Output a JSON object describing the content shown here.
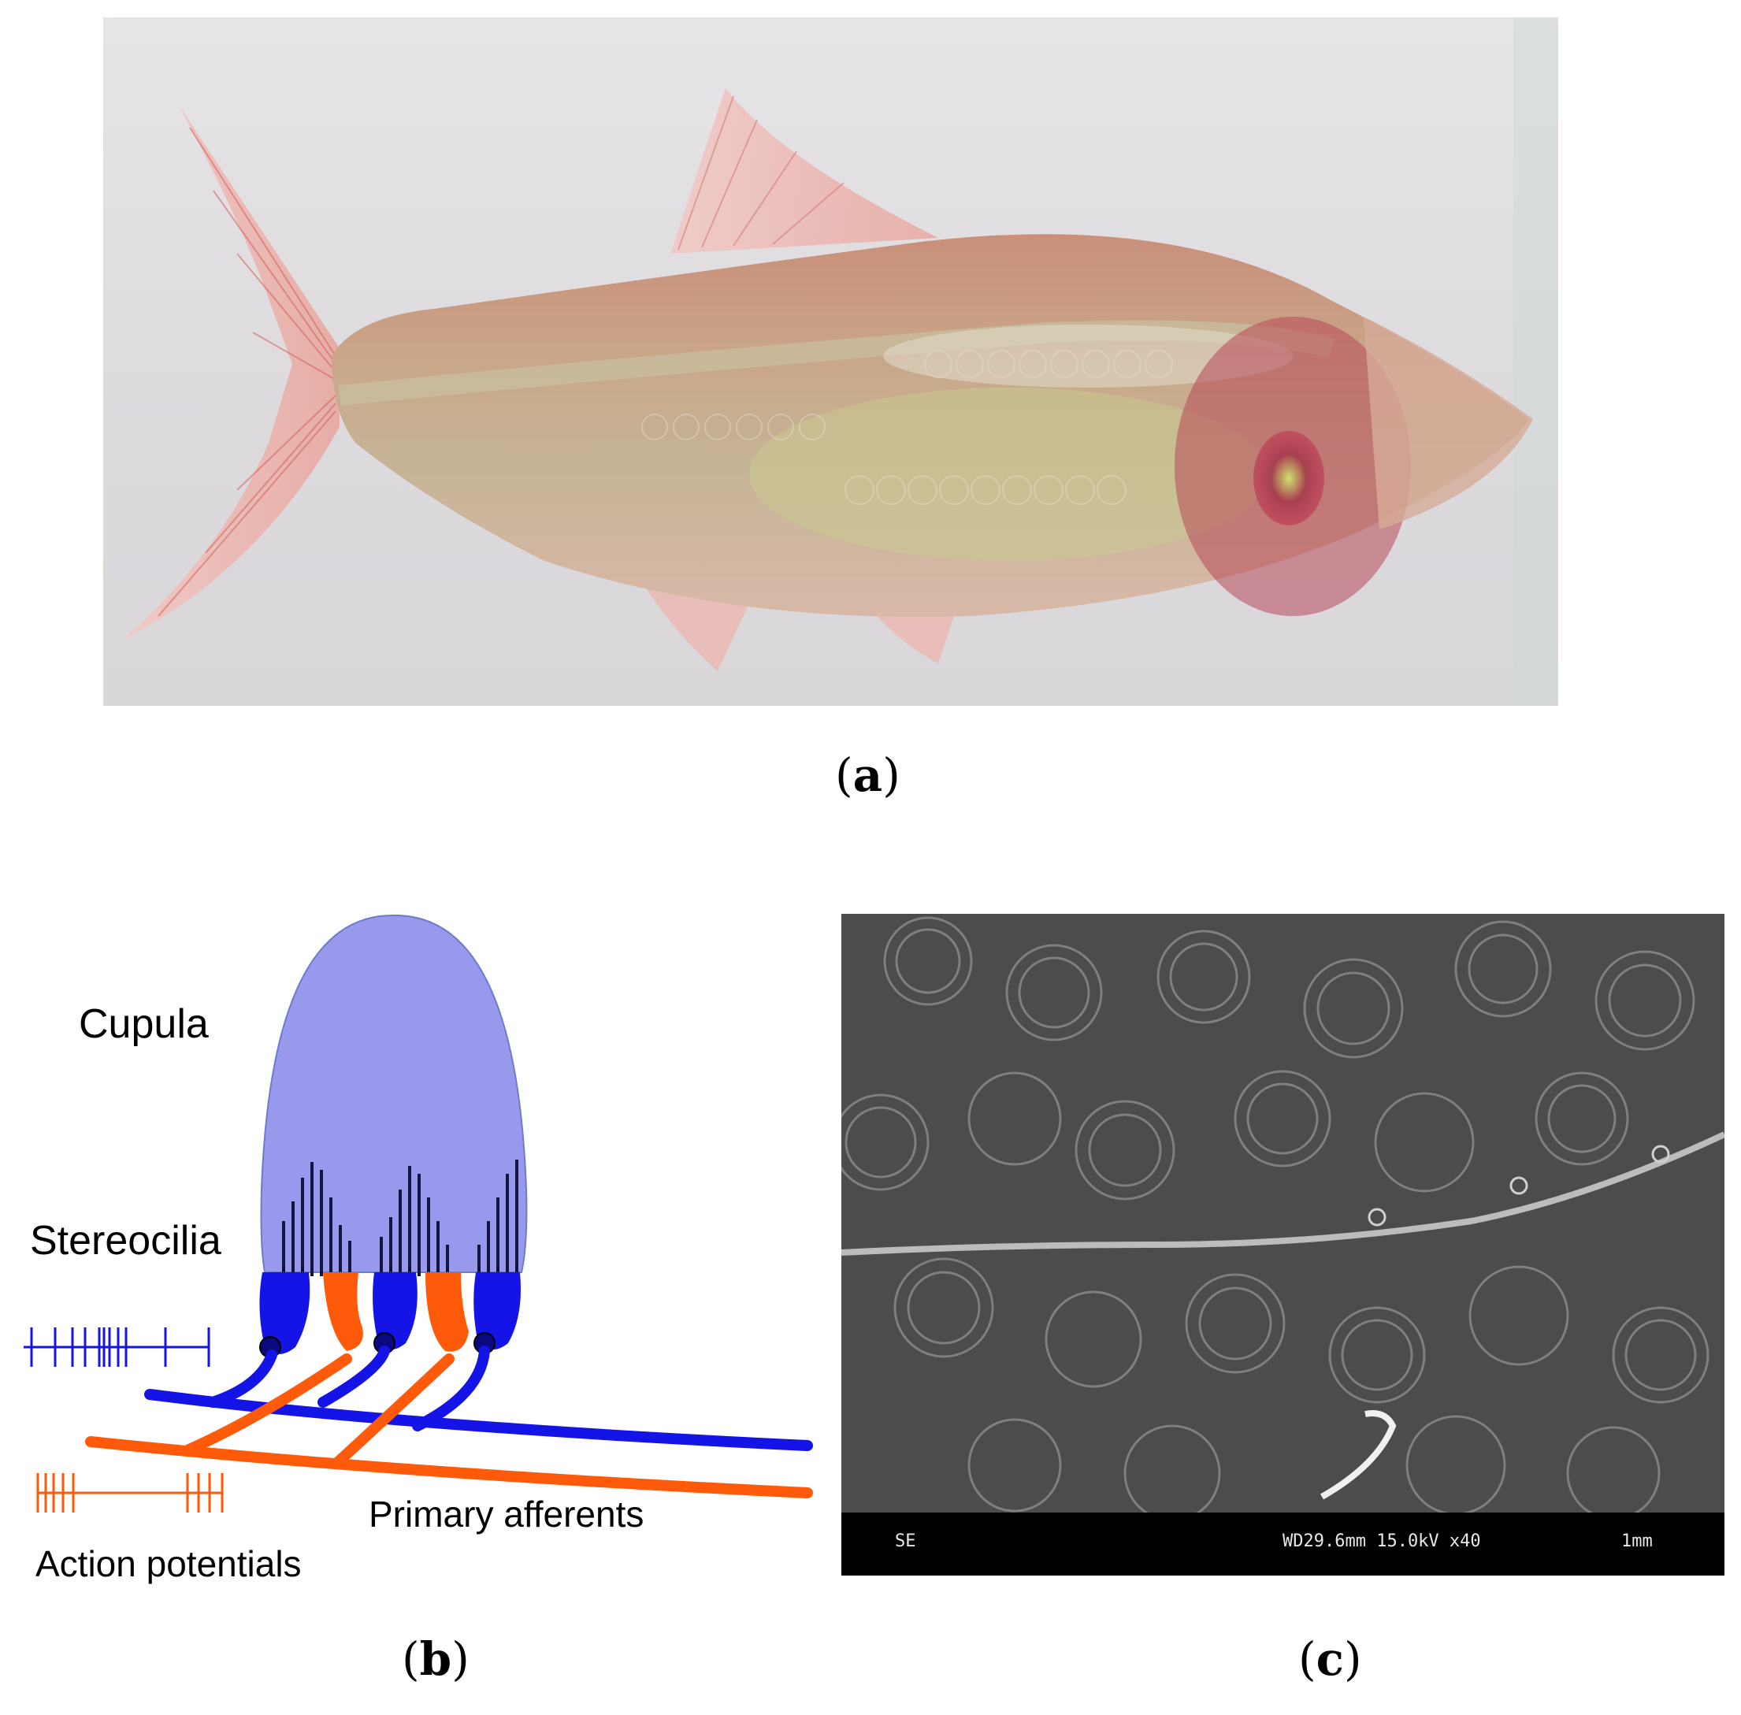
{
  "panels": {
    "a": {
      "label_open": "(",
      "letter": "a",
      "label_close": ")"
    },
    "b": {
      "label_open": "(",
      "letter": "b",
      "label_close": ")",
      "labels": {
        "cupula": "Cupula",
        "stereocilia": "Stereocilia",
        "primary_afferents": "Primary afferents",
        "action_potentials": "Action potentials"
      },
      "colors": {
        "cupula": "#9898ec",
        "blue": "#1414e6",
        "orange": "#ff5a0a",
        "cilia": "#141440"
      }
    },
    "c": {
      "label_open": "(",
      "letter": "c",
      "label_close": ")",
      "sem_bar": {
        "mode": "SE",
        "settings": "WD29.6mm 15.0kV x40",
        "scale": "1mm"
      }
    }
  }
}
